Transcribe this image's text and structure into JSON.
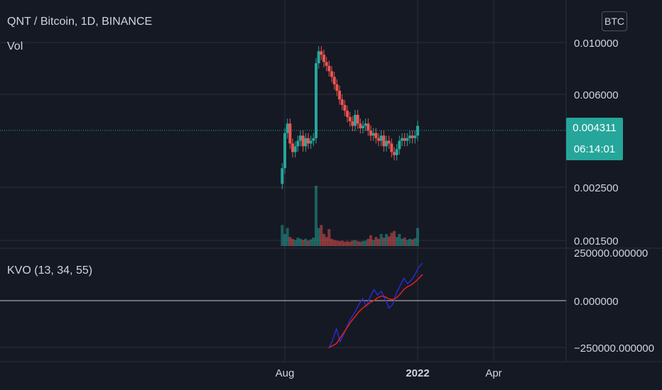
{
  "header": {
    "title": "QNT / Bitcoin, 1D, BINANCE",
    "volume_label": "Vol",
    "currency_button": "BTC"
  },
  "price_badge": {
    "price": "0.004311",
    "countdown": "06:14:01"
  },
  "indicator": {
    "label": "KVO (13, 34, 55)"
  },
  "colors": {
    "background": "#151924",
    "up": "#26a69a",
    "down": "#ef5350",
    "kvo_line": "#2a2ee0",
    "signal_line": "#e52020",
    "grid": "#2a2e39",
    "price_line": "#26a69a"
  },
  "chart_data": [
    {
      "type": "candlestick",
      "title": "QNT / Bitcoin, 1D, BINANCE",
      "y_axis_ticks": [
        "0.010000",
        "0.006000",
        "0.002500",
        "0.001500"
      ],
      "y_scale": "log",
      "x_axis_ticks": [
        "Aug",
        "2022",
        "Apr"
      ],
      "current_price": 0.004311,
      "series": [
        {
          "name": "QNT / Bitcoin",
          "x": [
            "2021-07-29",
            "2021-08-01",
            "2021-08-04",
            "2021-08-07",
            "2021-08-10",
            "2021-08-13",
            "2021-08-16",
            "2021-08-19",
            "2021-08-22",
            "2021-08-25",
            "2021-08-28",
            "2021-08-31",
            "2021-09-03",
            "2021-09-06",
            "2021-09-09",
            "2021-09-12",
            "2021-09-15",
            "2021-09-18",
            "2021-09-21",
            "2021-09-24",
            "2021-09-27",
            "2021-09-30",
            "2021-10-03",
            "2021-10-06",
            "2021-10-09",
            "2021-10-12",
            "2021-10-15",
            "2021-10-18",
            "2021-10-21",
            "2021-10-24",
            "2021-10-27",
            "2021-10-30",
            "2021-11-02",
            "2021-11-05",
            "2021-11-08",
            "2021-11-11",
            "2021-11-14",
            "2021-11-17",
            "2021-11-20",
            "2021-11-23",
            "2021-11-26",
            "2021-11-29",
            "2021-12-02",
            "2021-12-05",
            "2021-12-08",
            "2021-12-11",
            "2021-12-14",
            "2021-12-17",
            "2021-12-20",
            "2021-12-23",
            "2021-12-26",
            "2021-12-29",
            "2022-01-01"
          ],
          "close": [
            0.003,
            0.0042,
            0.0046,
            0.0038,
            0.0035,
            0.0037,
            0.0039,
            0.0041,
            0.0037,
            0.004,
            0.0038,
            0.0039,
            0.004,
            0.0082,
            0.0092,
            0.0089,
            0.0083,
            0.008,
            0.0076,
            0.0072,
            0.0067,
            0.0063,
            0.0058,
            0.0055,
            0.0052,
            0.0049,
            0.0047,
            0.0045,
            0.005,
            0.0046,
            0.0044,
            0.0045,
            0.0046,
            0.0043,
            0.0041,
            0.0042,
            0.004,
            0.0039,
            0.0041,
            0.0037,
            0.0039,
            0.0038,
            0.0035,
            0.0034,
            0.0036,
            0.0039,
            0.004,
            0.0039,
            0.004,
            0.0041,
            0.004,
            0.0041,
            0.0045
          ]
        }
      ]
    },
    {
      "type": "bar",
      "title": "Vol",
      "description": "volume bars aligned with candles",
      "values": [
        0.35,
        0.2,
        0.3,
        0.15,
        0.12,
        0.1,
        0.14,
        0.12,
        0.1,
        0.12,
        0.09,
        0.11,
        0.14,
        1.0,
        0.3,
        0.35,
        0.2,
        0.15,
        0.28,
        0.12,
        0.1,
        0.09,
        0.08,
        0.09,
        0.07,
        0.08,
        0.07,
        0.09,
        0.1,
        0.08,
        0.07,
        0.08,
        0.09,
        0.12,
        0.18,
        0.1,
        0.15,
        0.12,
        0.2,
        0.14,
        0.2,
        0.16,
        0.22,
        0.25,
        0.15,
        0.2,
        0.12,
        0.14,
        0.1,
        0.12,
        0.11,
        0.13,
        0.3
      ]
    },
    {
      "type": "line",
      "title": "KVO (13, 34, 55)",
      "y_axis_ticks": [
        "250000.000000",
        "0.000000",
        "−250000.000000"
      ],
      "ylim": [
        -250000,
        250000
      ],
      "series": [
        {
          "name": "KVO",
          "values": [
            -255000,
            -210000,
            -150000,
            -220000,
            -180000,
            -130000,
            -90000,
            -60000,
            -20000,
            10000,
            -30000,
            20000,
            60000,
            30000,
            50000,
            10000,
            -40000,
            -20000,
            40000,
            80000,
            120000,
            90000,
            110000,
            140000,
            180000,
            200000
          ]
        },
        {
          "name": "Signal",
          "values": [
            -250000,
            -240000,
            -230000,
            -200000,
            -170000,
            -140000,
            -110000,
            -85000,
            -60000,
            -40000,
            -25000,
            -10000,
            0,
            15000,
            25000,
            20000,
            10000,
            5000,
            15000,
            35000,
            60000,
            75000,
            85000,
            100000,
            120000,
            140000
          ]
        }
      ]
    }
  ]
}
